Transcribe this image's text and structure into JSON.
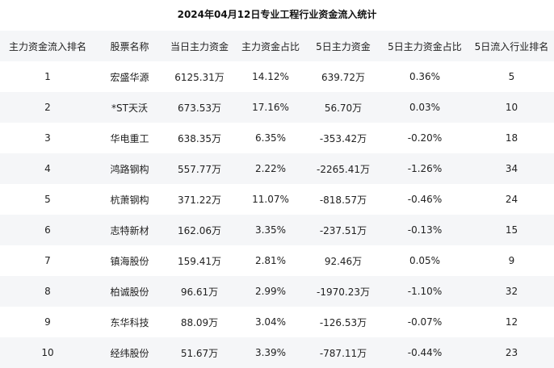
{
  "title": "2024年04月12日专业工程行业资金流入统计",
  "headers": [
    "主力资金流入排名",
    "股票名称",
    "当日主力资金",
    "主力资金占比",
    "5日主力资金",
    "5日主力资金占比",
    "5日流入行业排名"
  ],
  "rows": [
    [
      "1",
      "宏盛华源",
      "6125.31万",
      "14.12%",
      "639.72万",
      "0.36%",
      "5"
    ],
    [
      "2",
      "*ST天沃",
      "673.53万",
      "17.16%",
      "56.70万",
      "0.03%",
      "10"
    ],
    [
      "3",
      "华电重工",
      "638.35万",
      "6.35%",
      "-353.42万",
      "-0.20%",
      "18"
    ],
    [
      "4",
      "鸿路钢构",
      "557.77万",
      "2.22%",
      "-2265.41万",
      "-1.26%",
      "34"
    ],
    [
      "5",
      "杭萧钢构",
      "371.22万",
      "11.07%",
      "-818.57万",
      "-0.46%",
      "24"
    ],
    [
      "6",
      "志特新材",
      "162.06万",
      "3.35%",
      "-237.51万",
      "-0.13%",
      "15"
    ],
    [
      "7",
      "镇海股份",
      "159.41万",
      "2.81%",
      "92.46万",
      "0.05%",
      "9"
    ],
    [
      "8",
      "柏诚股份",
      "96.61万",
      "2.99%",
      "-1970.23万",
      "-1.10%",
      "32"
    ],
    [
      "9",
      "东华科技",
      "88.09万",
      "3.04%",
      "-126.53万",
      "-0.07%",
      "12"
    ],
    [
      "10",
      "经纬股份",
      "51.67万",
      "3.39%",
      "-787.11万",
      "-0.44%",
      "23"
    ]
  ]
}
